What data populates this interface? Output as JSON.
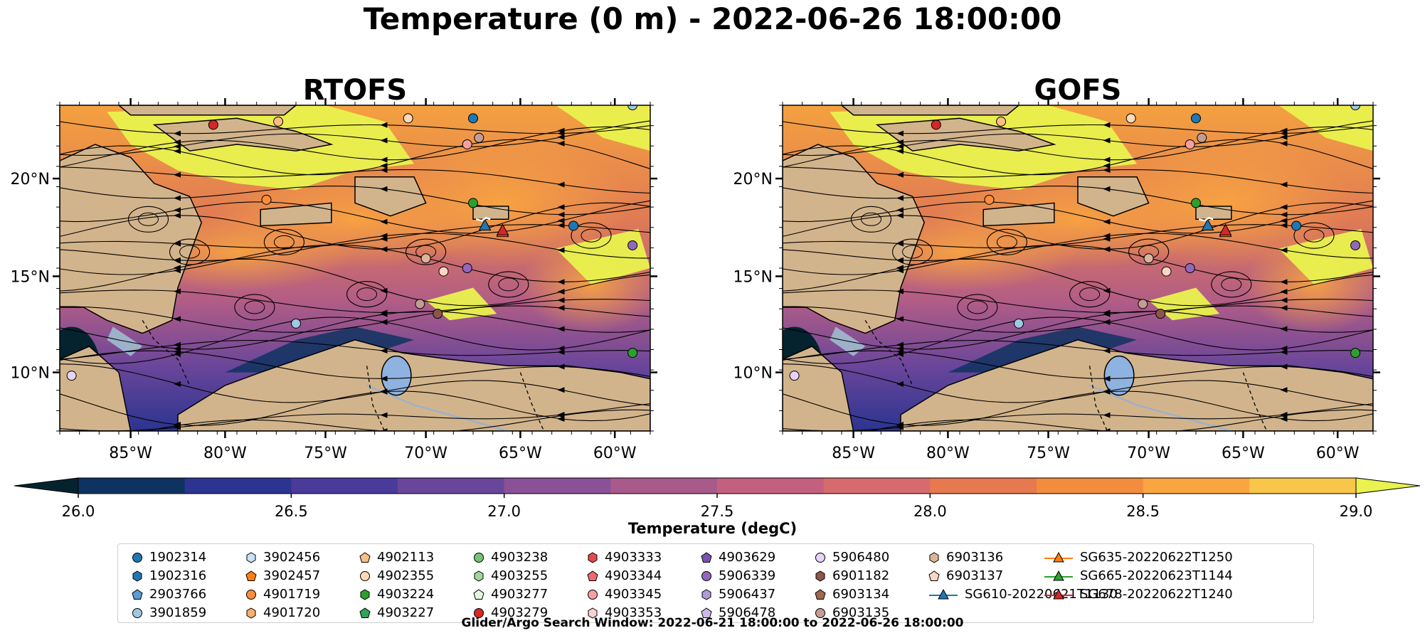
{
  "title": "Temperature (0 m) - 2022-06-26 18:00:00",
  "colors": {
    "land": "#d2b48c",
    "lake": "#8fb3e0",
    "river": "#9db1c9",
    "cmap": [
      "#04232f",
      "#0f3360",
      "#2b3490",
      "#4a3a9a",
      "#6a469a",
      "#8a5196",
      "#a85a8b",
      "#c4607f",
      "#d66b6d",
      "#e6794f",
      "#f28c3e",
      "#f9a640",
      "#f7c64a",
      "#e9f24e"
    ]
  },
  "maps": [
    {
      "name": "RTOFS"
    },
    {
      "name": "GOFS"
    }
  ],
  "axes": {
    "lon_labels": [
      "85°W",
      "80°W",
      "75°W",
      "70°W",
      "65°W",
      "60°W"
    ],
    "lat_labels": [
      "20°N",
      "15°N",
      "10°N"
    ]
  },
  "colorbar": {
    "label": "Temperature (degC)",
    "min": 26.0,
    "max": 29.0,
    "ticks": [
      "26.0",
      "26.5",
      "27.0",
      "27.5",
      "28.0",
      "28.5",
      "29.0"
    ]
  },
  "legend": {
    "items": [
      {
        "label": "1902314",
        "marker": "circle",
        "color": "#1f77b4"
      },
      {
        "label": "1902316",
        "marker": "hexagon",
        "color": "#1f77b4"
      },
      {
        "label": "2903766",
        "marker": "pentagon",
        "color": "#5b9bd5"
      },
      {
        "label": "3901859",
        "marker": "circle",
        "color": "#9ecae1"
      },
      {
        "label": "3902456",
        "marker": "hexagon",
        "color": "#c6e2f5"
      },
      {
        "label": "3902457",
        "marker": "pentagon",
        "color": "#ff7f0e"
      },
      {
        "label": "4901719",
        "marker": "circle",
        "color": "#fd8d3c"
      },
      {
        "label": "4901720",
        "marker": "hexagon",
        "color": "#fdae6b"
      },
      {
        "label": "4902113",
        "marker": "pentagon",
        "color": "#fdbe85"
      },
      {
        "label": "4902355",
        "marker": "circle",
        "color": "#fdd9b5"
      },
      {
        "label": "4903224",
        "marker": "hexagon",
        "color": "#2ca02c"
      },
      {
        "label": "4903227",
        "marker": "pentagon",
        "color": "#31a354"
      },
      {
        "label": "4903238",
        "marker": "circle",
        "color": "#74c476"
      },
      {
        "label": "4903255",
        "marker": "hexagon",
        "color": "#a1d99b"
      },
      {
        "label": "4903277",
        "marker": "pentagon",
        "color": "#e5f5e0"
      },
      {
        "label": "4903279",
        "marker": "circle",
        "color": "#d62728"
      },
      {
        "label": "4903333",
        "marker": "hexagon",
        "color": "#e34a4a"
      },
      {
        "label": "4903344",
        "marker": "pentagon",
        "color": "#ef6a6a"
      },
      {
        "label": "4903345",
        "marker": "circle",
        "color": "#f4a0a0"
      },
      {
        "label": "4903353",
        "marker": "hexagon",
        "color": "#f9d0d0"
      },
      {
        "label": "4903629",
        "marker": "pentagon",
        "color": "#7b4fb3"
      },
      {
        "label": "5906339",
        "marker": "circle",
        "color": "#9467bd"
      },
      {
        "label": "5906437",
        "marker": "hexagon",
        "color": "#b19cd9"
      },
      {
        "label": "5906478",
        "marker": "pentagon",
        "color": "#cdb8ec"
      },
      {
        "label": "5906480",
        "marker": "circle",
        "color": "#e6d3f7"
      },
      {
        "label": "6901182",
        "marker": "hexagon",
        "color": "#8c564b"
      },
      {
        "label": "6903134",
        "marker": "pentagon",
        "color": "#a0684f"
      },
      {
        "label": "6903135",
        "marker": "circle",
        "color": "#c49c94"
      },
      {
        "label": "6903136",
        "marker": "hexagon",
        "color": "#dbb59a"
      },
      {
        "label": "6903137",
        "marker": "pentagon",
        "color": "#f7d7c4"
      },
      {
        "label": "SG610-20220621T1130",
        "marker": "triangle-line",
        "color": "#1f77b4"
      },
      {
        "label": "SG635-20220622T1250",
        "marker": "triangle-line",
        "color": "#ff7f0e"
      },
      {
        "label": "SG665-20220623T1144",
        "marker": "triangle-line",
        "color": "#2ca02c"
      },
      {
        "label": "SG678-20220622T1240",
        "marker": "triangle-line",
        "color": "#d62728"
      }
    ]
  },
  "search_window": "Glider/Argo Search Window: 2022-06-21 18:00:00 to 2022-06-26 18:00:00"
}
